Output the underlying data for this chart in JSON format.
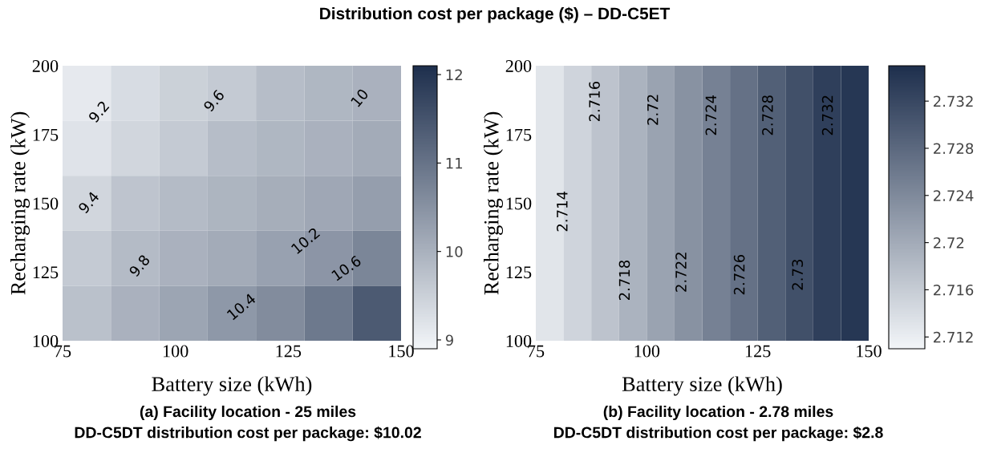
{
  "chart_data": [
    {
      "type": "heatmap",
      "title": "Distribution cost per package ($) – DD-C5ET",
      "xlabel": "Battery size (kWh)",
      "ylabel": "Recharging rate (kW)",
      "xlim": [
        75,
        150
      ],
      "xticks": [
        75,
        100,
        125,
        150
      ],
      "ylim": [
        100,
        200
      ],
      "yticks": [
        100,
        125,
        150,
        175,
        200
      ],
      "colors": [
        "#f2f5f8",
        "#1e2f4d"
      ],
      "clim": [
        8.9,
        12.1
      ],
      "cticks": [
        9,
        10,
        11,
        12
      ],
      "cells": [
        [
          9.1,
          9.3,
          9.5,
          9.6,
          9.8,
          9.9,
          10.0
        ],
        [
          9.2,
          9.4,
          9.6,
          9.8,
          9.9,
          10.0,
          10.1
        ],
        [
          9.4,
          9.7,
          9.85,
          9.95,
          10.05,
          10.15,
          10.3
        ],
        [
          9.6,
          9.85,
          10.0,
          10.1,
          10.25,
          10.45,
          10.7
        ],
        [
          9.75,
          10.0,
          10.2,
          10.4,
          10.6,
          10.9,
          11.4
        ]
      ],
      "annotations": [
        "9.2",
        "9.4",
        "9.6",
        "10",
        "9.8",
        "10.2",
        "10.4",
        "10.6",
        "(a) Facility location - 25 miles",
        "DD-C5DT distribution cost per package: $10.02"
      ]
    },
    {
      "type": "heatmap",
      "xlabel": "Battery size (kWh)",
      "ylabel": "Recharging rate (kW)",
      "xlim": [
        75,
        150
      ],
      "xticks": [
        75,
        100,
        125,
        150
      ],
      "ylim": [
        100,
        200
      ],
      "yticks": [
        100,
        125,
        150,
        175,
        200
      ],
      "colors": [
        "#f2f5f8",
        "#1e2f4d"
      ],
      "clim": [
        2.711,
        2.735
      ],
      "cticks": [
        2.712,
        2.716,
        2.72,
        2.724,
        2.728,
        2.732
      ],
      "cells": [
        [
          2.713,
          2.715,
          2.717,
          2.719,
          2.721,
          2.723,
          2.725,
          2.727,
          2.729,
          2.731,
          2.733,
          2.734
        ]
      ],
      "annotations": [
        "2.714",
        "2.716",
        "2.72",
        "2.724",
        "2.728",
        "2.732",
        "2.718",
        "2.722",
        "2.726",
        "2.73",
        "(b) Facility location - 2.78 miles",
        "DD-C5DT distribution cost per package: $2.8"
      ]
    }
  ]
}
